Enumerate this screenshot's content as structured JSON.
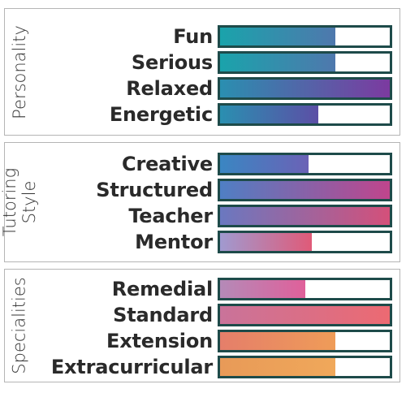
{
  "chart_data": {
    "type": "bar",
    "orientation": "horizontal",
    "groups": [
      {
        "name": "Personality",
        "categories": [
          "Fun",
          "Serious",
          "Relaxed",
          "Energetic"
        ],
        "values": [
          0.68,
          0.68,
          1.0,
          0.58
        ],
        "colors": [
          [
            "#1aa3ab",
            "#4f78ad"
          ],
          [
            "#1aa3ab",
            "#4f78ad"
          ],
          [
            "#2a8fb0",
            "#7c3aa0"
          ],
          [
            "#2a8fb0",
            "#5c4fa6"
          ]
        ]
      },
      {
        "name": "Tutoring\nStyle",
        "categories": [
          "Creative",
          "Structured",
          "Teacher",
          "Mentor"
        ],
        "values": [
          0.52,
          1.0,
          1.0,
          0.54
        ],
        "colors": [
          [
            "#3a86c2",
            "#6b62b6"
          ],
          [
            "#4f7fc4",
            "#c0458c"
          ],
          [
            "#6a78c0",
            "#d4507a"
          ],
          [
            "#a09ad0",
            "#e05a78"
          ]
        ]
      },
      {
        "name": "Specialities",
        "categories": [
          "Remedial",
          "Standard",
          "Extension",
          "Extracurricular"
        ],
        "values": [
          0.5,
          1.0,
          0.68,
          0.68
        ],
        "colors": [
          [
            "#b48ab8",
            "#e0609a"
          ],
          [
            "#c9739a",
            "#ec6a72"
          ],
          [
            "#e57e6a",
            "#ef9c58"
          ],
          [
            "#e89a58",
            "#f0a85a"
          ]
        ]
      }
    ]
  }
}
